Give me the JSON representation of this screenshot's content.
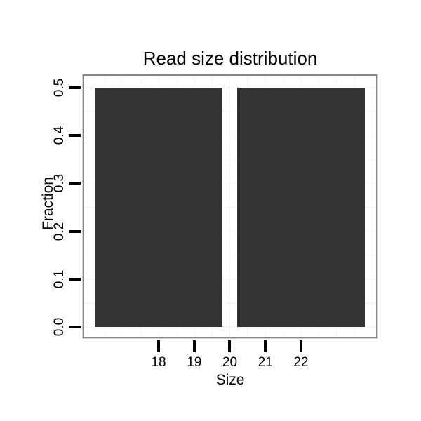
{
  "chart_data": {
    "type": "bar",
    "title": "Read size distribution",
    "xlabel": "Size",
    "ylabel": "Fraction",
    "categories": [
      18,
      22
    ],
    "values": [
      0.5,
      0.5
    ],
    "bar_width_units": 3.6,
    "xlim": [
      15.87,
      24.15
    ],
    "ylim": [
      -0.0235,
      0.528
    ],
    "x_ticks": [
      {
        "v": 18,
        "label": "18"
      },
      {
        "v": 19,
        "label": "19"
      },
      {
        "v": 20,
        "label": "20"
      },
      {
        "v": 21,
        "label": "21"
      },
      {
        "v": 22,
        "label": "22"
      }
    ],
    "y_ticks": [
      {
        "v": 0.0,
        "label": "0.0"
      },
      {
        "v": 0.1,
        "label": "0.1"
      },
      {
        "v": 0.2,
        "label": "0.2"
      },
      {
        "v": 0.3,
        "label": "0.3"
      },
      {
        "v": 0.4,
        "label": "0.4"
      },
      {
        "v": 0.5,
        "label": "0.5"
      }
    ],
    "grid": {
      "x_step": 0.5,
      "y_step": 0.05,
      "color": "#f7f7f7"
    },
    "legend": "none",
    "colors": {
      "bar": "#333333",
      "panel_border": "#878787",
      "tick": "#000000",
      "text": "#000000",
      "background": "#ffffff"
    }
  }
}
